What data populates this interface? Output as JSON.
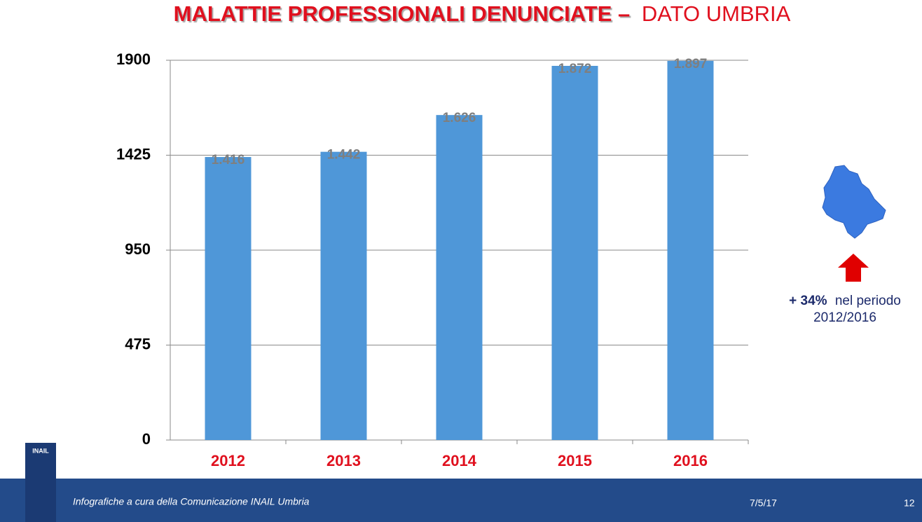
{
  "chart_data": {
    "type": "bar",
    "title": "MALATTIE PROFESSIONALI DENUNCIATE –",
    "subtitle": "DATO UMBRIA",
    "categories": [
      "2012",
      "2013",
      "2014",
      "2015",
      "2016"
    ],
    "values": [
      1416,
      1442,
      1626,
      1872,
      1897
    ],
    "value_labels": [
      "1.416",
      "1.442",
      "1.626",
      "1.872",
      "1.897"
    ],
    "color": "#4f97d8",
    "ylim": [
      0,
      1900
    ],
    "yticks": [
      0,
      475,
      950,
      1425,
      1900
    ],
    "grid": true
  },
  "annotation": {
    "change": "+ 34%",
    "text": "nel periodo",
    "period": "2012/2016"
  },
  "footer": {
    "logo": "INAIL",
    "credit": "Infografiche a cura della Comunicazione INAIL Umbria",
    "date": "7/5/17",
    "page": "12"
  }
}
